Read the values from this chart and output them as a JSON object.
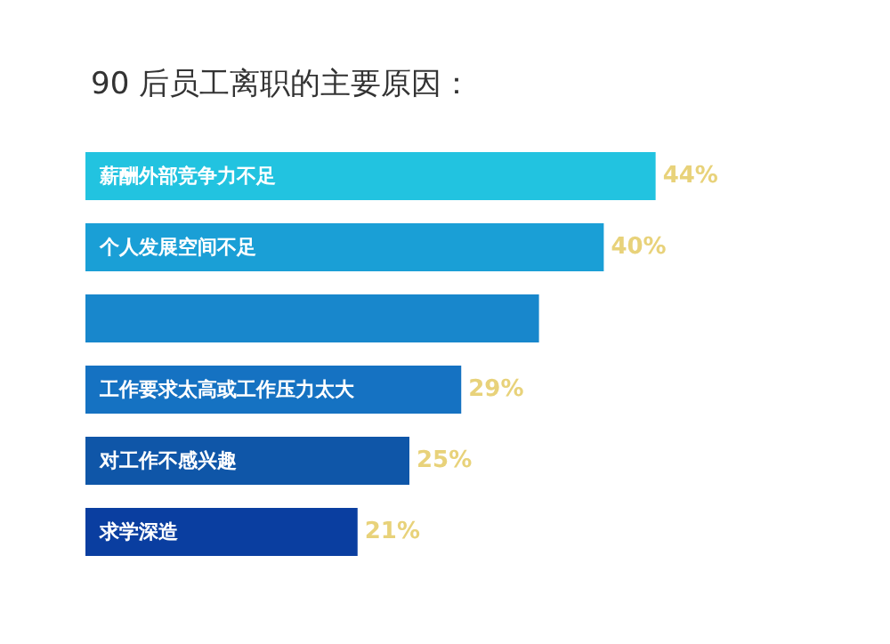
{
  "chart_data": {
    "type": "bar",
    "orientation": "horizontal",
    "title": "90 后员工离职的主要原因：",
    "categories": [
      "薪酬外部竞争力不足",
      "个人发展空间不足",
      null,
      "工作要求太高或工作压力太大",
      "对工作不感兴趣",
      "求学深造"
    ],
    "values": [
      44,
      40,
      35,
      29,
      25,
      21
    ],
    "colors": [
      "#22c3e0",
      "#1a9fd6",
      "#1887cc",
      "#1572c2",
      "#0f56a8",
      "#0a3ea0"
    ],
    "value_labels": [
      "44%",
      "40%",
      null,
      "29%",
      "25%",
      "21%"
    ],
    "tick_labels": "y"
  }
}
